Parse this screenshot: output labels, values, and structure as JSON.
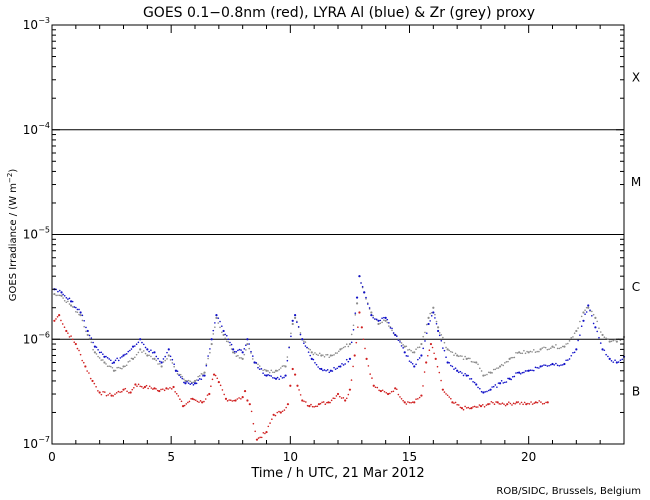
{
  "chart_data": {
    "type": "scatter",
    "title": "GOES 0.1−0.8nm (red), LYRA Al (blue) & Zr (grey) proxy",
    "xlabel": "Time / h UTC, 21 Mar 2012",
    "ylabel_main": "GOES Irradiance / (W m",
    "ylabel_sup": "−2",
    "ylabel_end": ")",
    "credit": "ROB/SIDC, Brussels, Belgium",
    "x_range": [
      0,
      24
    ],
    "y_range": [
      1e-07,
      0.001
    ],
    "y_scale": "log",
    "x_ticks": [
      {
        "value": 0,
        "label": "0"
      },
      {
        "value": 5,
        "label": "5"
      },
      {
        "value": 10,
        "label": "10"
      },
      {
        "value": 15,
        "label": "15"
      },
      {
        "value": 20,
        "label": "20"
      }
    ],
    "y_ticks": [
      {
        "value": 1e-07,
        "base": "10",
        "exp": "−7"
      },
      {
        "value": 1e-06,
        "base": "10",
        "exp": "−6"
      },
      {
        "value": 1e-05,
        "base": "10",
        "exp": "−5"
      },
      {
        "value": 0.0001,
        "base": "10",
        "exp": "−4"
      },
      {
        "value": 0.001,
        "base": "10",
        "exp": "−3"
      }
    ],
    "class_lines": [
      1e-06,
      1e-05,
      0.0001
    ],
    "flare_classes": [
      {
        "label": "X",
        "value": 0.000316
      },
      {
        "label": "M",
        "value": 3.16e-05
      },
      {
        "label": "C",
        "value": 3.16e-06
      },
      {
        "label": "B",
        "value": 3.16e-07
      }
    ],
    "series": [
      {
        "color": "#d02020",
        "x": [
          0.1,
          0.3,
          0.6,
          1.0,
          1.4,
          1.7,
          2.0,
          2.5,
          3.0,
          3.3,
          3.5,
          3.9,
          4.3,
          4.5,
          4.8,
          5.1,
          5.5,
          5.9,
          6.3,
          6.6,
          6.8,
          7.0,
          7.3,
          7.7,
          8.0,
          8.1,
          8.2,
          8.3,
          8.6,
          9.0,
          9.3,
          9.6,
          9.9,
          10.0,
          10.1,
          10.2,
          10.3,
          10.5,
          10.8,
          11.2,
          11.6,
          12.0,
          12.3,
          12.5,
          12.7,
          12.9,
          13.0,
          13.2,
          13.5,
          13.8,
          14.1,
          14.4,
          14.8,
          15.2,
          15.5,
          15.7,
          15.9,
          16.1,
          16.4,
          16.8,
          17.2,
          17.6,
          18.0,
          18.3,
          18.7,
          19.1,
          19.5,
          19.9,
          20.3,
          20.8
        ],
        "y": [
          1.5e-06,
          1.7e-06,
          1.2e-06,
          9e-07,
          5.5e-07,
          4e-07,
          3.1e-07,
          2.9e-07,
          3.3e-07,
          3.1e-07,
          3.7e-07,
          3.5e-07,
          3.4e-07,
          3.2e-07,
          3.4e-07,
          3.5e-07,
          2.3e-07,
          2.7e-07,
          2.5e-07,
          3e-07,
          4.6e-07,
          3.9e-07,
          2.7e-07,
          2.6e-07,
          2.8e-07,
          3.2e-07,
          2.6e-07,
          2.4e-07,
          1.1e-07,
          1.3e-07,
          1.9e-07,
          2e-07,
          2.4e-07,
          3.6e-07,
          5.2e-07,
          4.6e-07,
          3.6e-07,
          2.6e-07,
          2.3e-07,
          2.4e-07,
          2.5e-07,
          3e-07,
          2.6e-07,
          3.3e-07,
          7e-07,
          1.8e-06,
          1.3e-06,
          6.5e-07,
          3.6e-07,
          3.2e-07,
          3e-07,
          3.4e-07,
          2.5e-07,
          2.5e-07,
          2.9e-07,
          6e-07,
          9e-07,
          6.5e-07,
          3.3e-07,
          2.5e-07,
          2.2e-07,
          2.2e-07,
          2.3e-07,
          2.4e-07,
          2.5e-07,
          2.4e-07,
          2.5e-07,
          2.4e-07,
          2.5e-07,
          2.5e-07
        ]
      },
      {
        "color": "#8c8c8c",
        "x": [
          0.1,
          0.4,
          0.8,
          1.2,
          1.5,
          1.8,
          2.2,
          2.6,
          3.0,
          3.4,
          3.7,
          4.0,
          4.3,
          4.6,
          4.9,
          5.2,
          5.6,
          6.0,
          6.4,
          6.7,
          6.9,
          7.2,
          7.6,
          8.0,
          8.2,
          8.5,
          9.0,
          9.4,
          9.8,
          10.1,
          10.2,
          10.5,
          10.9,
          11.3,
          11.7,
          12.1,
          12.5,
          12.8,
          12.9,
          13.1,
          13.4,
          13.7,
          14.0,
          14.4,
          14.8,
          15.2,
          15.5,
          15.8,
          16.0,
          16.2,
          16.6,
          17.0,
          17.4,
          17.8,
          18.1,
          18.4,
          18.8,
          19.2,
          19.6,
          20.0,
          20.5,
          21.0,
          21.5,
          22.0,
          22.3,
          22.5,
          22.8,
          23.1,
          23.4,
          23.7,
          24.0
        ],
        "y": [
          2.7e-06,
          2.6e-06,
          2.1e-06,
          1.7e-06,
          1.1e-06,
          7.5e-07,
          6e-07,
          5e-07,
          5.5e-07,
          6.5e-07,
          8e-07,
          7e-07,
          6.5e-07,
          5.5e-07,
          7e-07,
          5e-07,
          4e-07,
          4e-07,
          4.8e-07,
          9e-07,
          1.6e-06,
          1.1e-06,
          7.5e-07,
          6.5e-07,
          9e-07,
          6e-07,
          5e-07,
          5e-07,
          5.5e-07,
          1.4e-06,
          1.6e-06,
          1e-06,
          7.5e-07,
          7e-07,
          7e-07,
          8e-07,
          9e-07,
          2.2e-06,
          4e-06,
          2.8e-06,
          1.8e-06,
          1.4e-06,
          1.5e-06,
          1.1e-06,
          8.5e-07,
          7.5e-07,
          9e-07,
          1.6e-06,
          2e-06,
          1.3e-06,
          8e-07,
          7e-07,
          6.5e-07,
          6e-07,
          4.5e-07,
          4.8e-07,
          5.5e-07,
          6.5e-07,
          7.5e-07,
          7.5e-07,
          8e-07,
          8.5e-07,
          8.5e-07,
          1.2e-06,
          1.8e-06,
          2e-06,
          1.6e-06,
          1.1e-06,
          9.5e-07,
          9.5e-07,
          1.05e-06
        ]
      },
      {
        "color": "#1010c8",
        "x": [
          0.1,
          0.4,
          0.8,
          1.2,
          1.5,
          1.8,
          2.2,
          2.6,
          3.0,
          3.4,
          3.7,
          4.0,
          4.3,
          4.6,
          4.9,
          5.2,
          5.6,
          6.0,
          6.4,
          6.7,
          6.9,
          7.2,
          7.6,
          8.0,
          8.2,
          8.5,
          9.0,
          9.4,
          9.8,
          10.1,
          10.2,
          10.5,
          10.9,
          11.3,
          11.7,
          12.1,
          12.5,
          12.8,
          12.9,
          13.1,
          13.4,
          13.7,
          14.0,
          14.4,
          14.8,
          15.2,
          15.5,
          15.8,
          16.0,
          16.2,
          16.6,
          17.0,
          17.4,
          17.8,
          18.1,
          18.4,
          18.8,
          19.2,
          19.6,
          20.0,
          20.5,
          21.0,
          21.5,
          22.0,
          22.3,
          22.5,
          22.8,
          23.1,
          23.4,
          23.7,
          24.0
        ],
        "y": [
          3e-06,
          2.8e-06,
          2.3e-06,
          1.8e-06,
          1.2e-06,
          8.5e-07,
          6.8e-07,
          6e-07,
          7e-07,
          8.5e-07,
          1e-06,
          8e-07,
          7.5e-07,
          6e-07,
          8e-07,
          5e-07,
          3.8e-07,
          3.8e-07,
          4.5e-07,
          1e-06,
          1.7e-06,
          1.2e-06,
          8e-07,
          7.5e-07,
          1e-06,
          6e-07,
          4.5e-07,
          4.2e-07,
          4.5e-07,
          1.5e-06,
          1.7e-06,
          1e-06,
          6.5e-07,
          5.2e-07,
          5e-07,
          5.5e-07,
          6.5e-07,
          2.5e-06,
          4e-06,
          2.8e-06,
          1.7e-06,
          1.5e-06,
          1.6e-06,
          1.1e-06,
          7.5e-07,
          5.5e-07,
          7e-07,
          1.4e-06,
          1.8e-06,
          1.2e-06,
          6e-07,
          5e-07,
          4.5e-07,
          3.7e-07,
          3.1e-07,
          3.3e-07,
          3.8e-07,
          4.2e-07,
          4.8e-07,
          5e-07,
          5.5e-07,
          5.8e-07,
          5.8e-07,
          8e-07,
          1.5e-06,
          2.1e-06,
          1.3e-06,
          8e-07,
          6.5e-07,
          6e-07,
          6.8e-07
        ]
      }
    ]
  }
}
